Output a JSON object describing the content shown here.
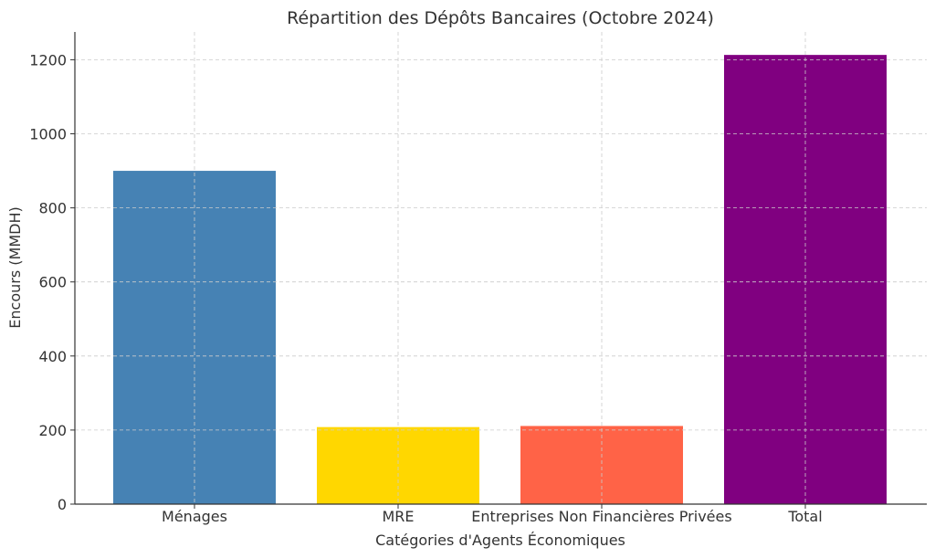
{
  "chart_data": {
    "type": "bar",
    "title": "Répartition des Dépôts Bancaires (Octobre 2024)",
    "xlabel": "Catégories d'Agents Économiques",
    "ylabel": "Encours (MMDH)",
    "categories": [
      "Ménages",
      "MRE",
      "Entreprises Non Financières Privées",
      "Total"
    ],
    "values": [
      900,
      208,
      211,
      1213
    ],
    "colors": [
      "#4682b4",
      "#ffd700",
      "#ff6347",
      "#800080"
    ],
    "ylim": [
      0,
      1275
    ],
    "yticks": [
      0,
      200,
      400,
      600,
      800,
      1000,
      1200
    ],
    "grid": true
  }
}
